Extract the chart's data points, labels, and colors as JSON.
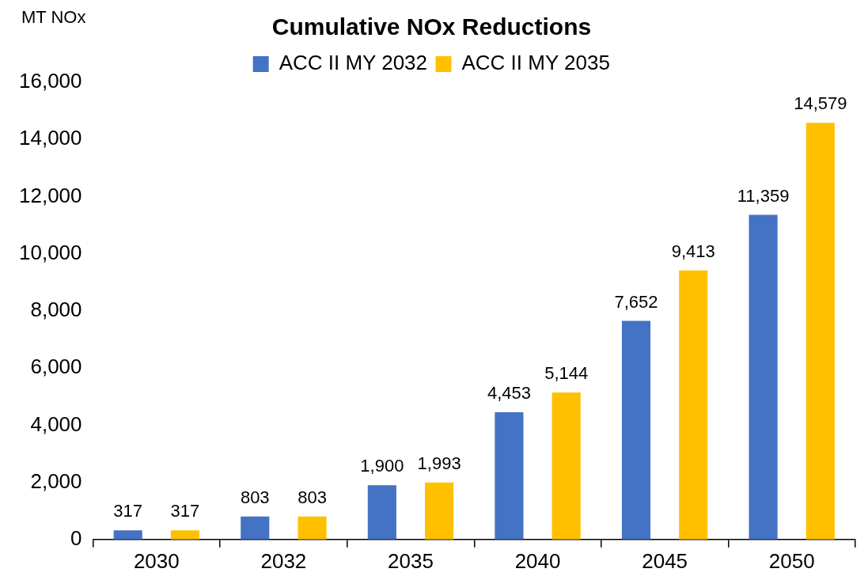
{
  "chart_data": {
    "type": "bar",
    "title": "Cumulative NOx Reductions",
    "ylabel": "MT NOx",
    "categories": [
      "2030",
      "2032",
      "2035",
      "2040",
      "2045",
      "2050"
    ],
    "series": [
      {
        "name": "ACC II MY 2032",
        "color": "#4472c4",
        "values": [
          317,
          803,
          1900,
          4453,
          7652,
          11359
        ],
        "value_labels": [
          "317",
          "803",
          "1,900",
          "4,453",
          "7,652",
          "11,359"
        ]
      },
      {
        "name": "ACC II MY 2035",
        "color": "#ffc000",
        "values": [
          317,
          803,
          1993,
          5144,
          9413,
          14579
        ],
        "value_labels": [
          "317",
          "803",
          "1,993",
          "5,144",
          "9,413",
          "14,579"
        ]
      }
    ],
    "ylim": [
      0,
      16000
    ],
    "yticks": [
      {
        "value": 0,
        "label": "0"
      },
      {
        "value": 2000,
        "label": "2,000"
      },
      {
        "value": 4000,
        "label": "4,000"
      },
      {
        "value": 6000,
        "label": "6,000"
      },
      {
        "value": 8000,
        "label": "8,000"
      },
      {
        "value": 10000,
        "label": "10,000"
      },
      {
        "value": 12000,
        "label": "12,000"
      },
      {
        "value": 14000,
        "label": "14,000"
      },
      {
        "value": 16000,
        "label": "16,000"
      }
    ],
    "grid": false,
    "legend": "top"
  }
}
